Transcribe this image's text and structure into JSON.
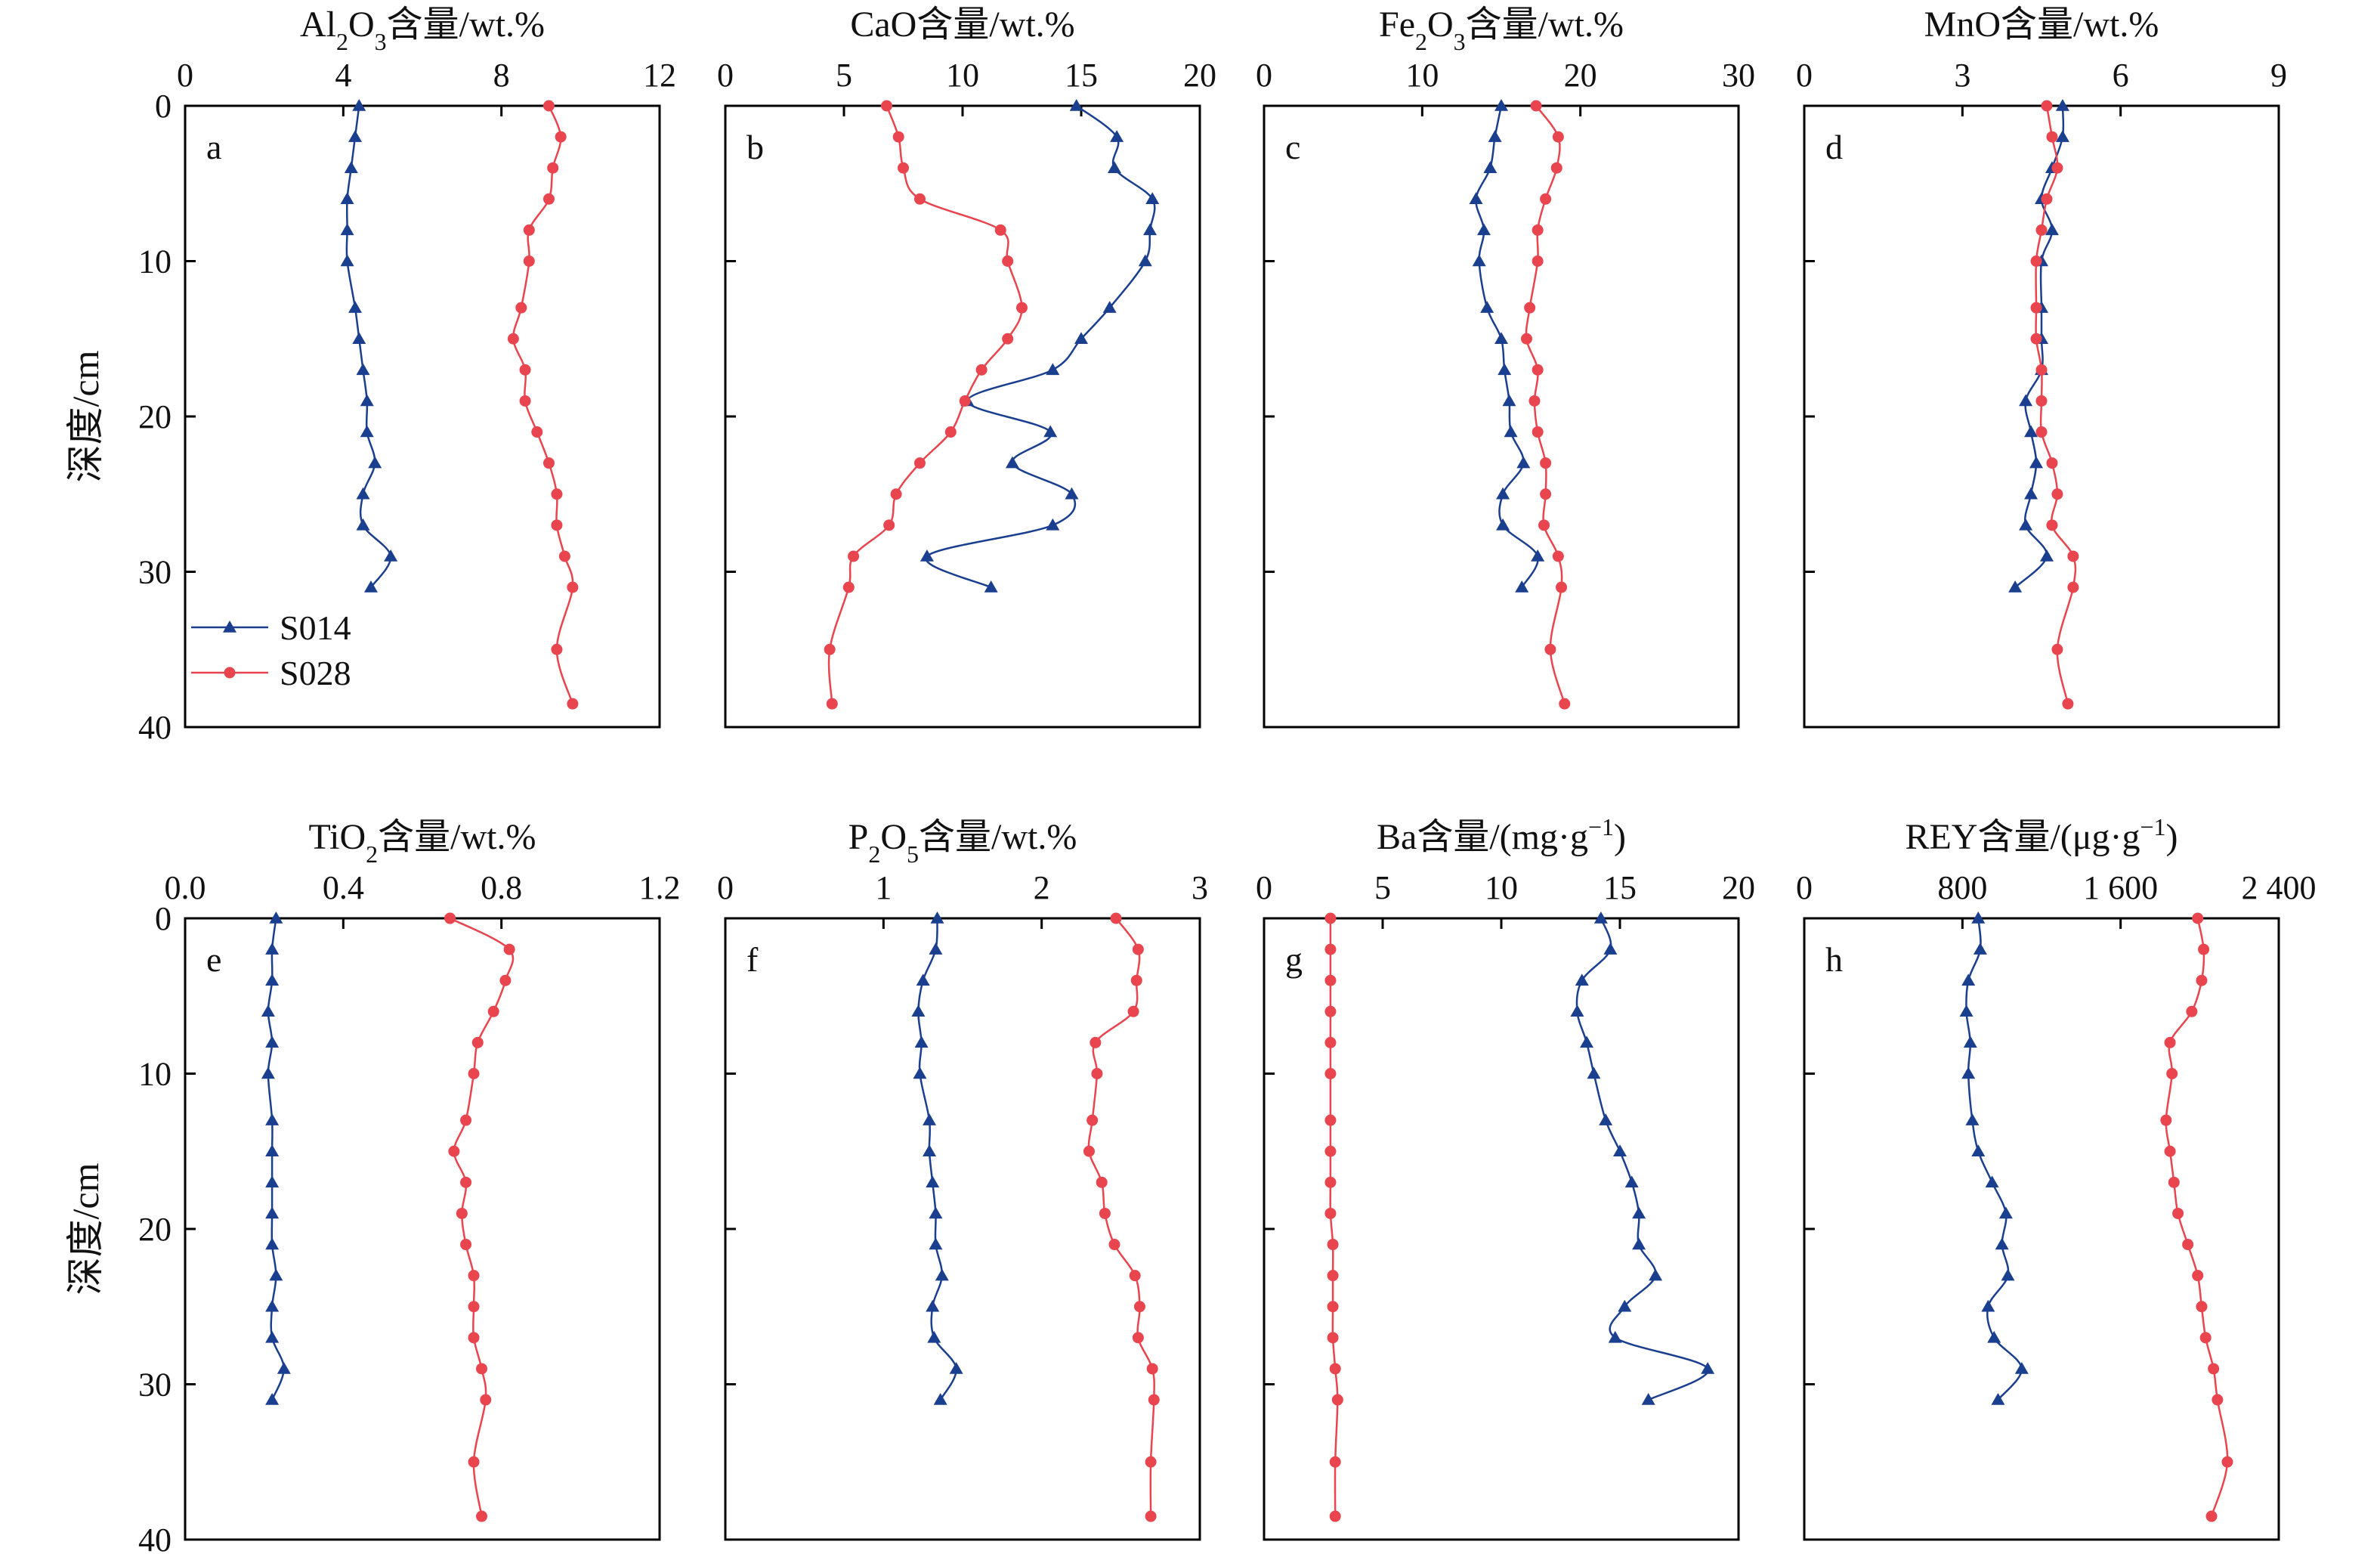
{
  "colors": {
    "S014": "#1b3f8f",
    "S028": "#e8454f"
  },
  "legend": {
    "items": [
      {
        "name": "S014",
        "marker": "triangle"
      },
      {
        "name": "S028",
        "marker": "circle"
      }
    ]
  },
  "chart_data": [
    {
      "type": "line",
      "letter": "a",
      "title_parts": [
        {
          "t": "Al"
        },
        {
          "t": "2",
          "sub": true
        },
        {
          "t": "O"
        },
        {
          "t": "3",
          "sub": true
        },
        {
          "t": "含量/wt.%"
        }
      ],
      "xlim": [
        0,
        12
      ],
      "xtick_values": [
        0,
        4,
        8,
        12
      ],
      "xtick_labels": [
        "0",
        "4",
        "8",
        "12"
      ],
      "ylabel": "深度/cm",
      "ylim": [
        0,
        40
      ],
      "ytick_values": [
        0,
        10,
        20,
        30,
        40
      ],
      "ytick_labels": [
        "0",
        "10",
        "20",
        "30",
        "40"
      ],
      "series": [
        {
          "name": "S014",
          "depth": [
            0,
            2,
            4,
            6,
            8,
            10,
            13,
            15,
            17,
            19,
            21,
            23,
            25,
            27,
            29,
            31
          ],
          "values": [
            4.4,
            4.3,
            4.2,
            4.1,
            4.1,
            4.1,
            4.3,
            4.4,
            4.5,
            4.6,
            4.6,
            4.8,
            4.5,
            4.5,
            5.2,
            4.7
          ]
        },
        {
          "name": "S028",
          "depth": [
            0,
            2,
            4,
            6,
            8,
            10,
            13,
            15,
            17,
            19,
            21,
            23,
            25,
            27,
            29,
            31,
            35,
            38.5
          ],
          "values": [
            9.2,
            9.5,
            9.3,
            9.2,
            8.7,
            8.7,
            8.5,
            8.3,
            8.6,
            8.6,
            8.9,
            9.2,
            9.4,
            9.4,
            9.6,
            9.8,
            9.4,
            9.8
          ]
        }
      ]
    },
    {
      "type": "line",
      "letter": "b",
      "title_parts": [
        {
          "t": "CaO含量/wt.%"
        }
      ],
      "xlim": [
        0,
        20
      ],
      "xtick_values": [
        0,
        5,
        10,
        15,
        20
      ],
      "xtick_labels": [
        "0",
        "5",
        "10",
        "15",
        "20"
      ],
      "ylabel": "深度/cm",
      "ylim": [
        0,
        40
      ],
      "ytick_values": [
        0,
        10,
        20,
        30,
        40
      ],
      "ytick_labels": [
        "0",
        "10",
        "20",
        "30",
        "40"
      ],
      "series": [
        {
          "name": "S014",
          "depth": [
            0,
            2,
            4,
            6,
            8,
            10,
            13,
            15,
            17,
            19,
            21,
            23,
            25,
            27,
            29,
            31
          ],
          "values": [
            14.8,
            16.5,
            16.4,
            18.0,
            17.9,
            17.7,
            16.2,
            15.0,
            13.8,
            10.2,
            13.7,
            12.1,
            14.6,
            13.8,
            8.5,
            11.2
          ]
        },
        {
          "name": "S028",
          "depth": [
            0,
            2,
            4,
            6,
            8,
            10,
            13,
            15,
            17,
            19,
            21,
            23,
            25,
            27,
            29,
            31,
            35,
            38.5
          ],
          "values": [
            6.8,
            7.3,
            7.5,
            8.2,
            11.6,
            11.9,
            12.5,
            11.9,
            10.8,
            10.1,
            9.5,
            8.2,
            7.2,
            6.9,
            5.4,
            5.2,
            4.4,
            4.5
          ]
        }
      ]
    },
    {
      "type": "line",
      "letter": "c",
      "title_parts": [
        {
          "t": "Fe"
        },
        {
          "t": "2",
          "sub": true
        },
        {
          "t": "O"
        },
        {
          "t": "3",
          "sub": true
        },
        {
          "t": "含量/wt.%"
        }
      ],
      "xlim": [
        0,
        30
      ],
      "xtick_values": [
        0,
        10,
        20,
        30
      ],
      "xtick_labels": [
        "0",
        "10",
        "20",
        "30"
      ],
      "ylabel": "深度/cm",
      "ylim": [
        0,
        40
      ],
      "ytick_values": [
        0,
        10,
        20,
        30,
        40
      ],
      "ytick_labels": [
        "0",
        "10",
        "20",
        "30",
        "40"
      ],
      "series": [
        {
          "name": "S014",
          "depth": [
            0,
            2,
            4,
            6,
            8,
            10,
            13,
            15,
            17,
            19,
            21,
            23,
            25,
            27,
            29,
            31
          ],
          "values": [
            15.0,
            14.6,
            14.3,
            13.4,
            13.9,
            13.6,
            14.1,
            15.0,
            15.2,
            15.5,
            15.6,
            16.4,
            15.1,
            15.1,
            17.3,
            16.3
          ]
        },
        {
          "name": "S028",
          "depth": [
            0,
            2,
            4,
            6,
            8,
            10,
            13,
            15,
            17,
            19,
            21,
            23,
            25,
            27,
            29,
            31,
            35,
            38.5
          ],
          "values": [
            17.2,
            18.6,
            18.5,
            17.8,
            17.3,
            17.3,
            16.8,
            16.6,
            17.3,
            17.1,
            17.3,
            17.8,
            17.8,
            17.7,
            18.6,
            18.8,
            18.1,
            19.0
          ]
        }
      ]
    },
    {
      "type": "line",
      "letter": "d",
      "title_parts": [
        {
          "t": "MnO含量/wt.%"
        }
      ],
      "xlim": [
        0,
        9
      ],
      "xtick_values": [
        0,
        3,
        6,
        9
      ],
      "xtick_labels": [
        "0",
        "3",
        "6",
        "9"
      ],
      "ylabel": "深度/cm",
      "ylim": [
        0,
        40
      ],
      "ytick_values": [
        0,
        10,
        20,
        30,
        40
      ],
      "ytick_labels": [
        "0",
        "10",
        "20",
        "30",
        "40"
      ],
      "series": [
        {
          "name": "S014",
          "depth": [
            0,
            2,
            4,
            6,
            8,
            10,
            13,
            15,
            17,
            19,
            21,
            23,
            25,
            27,
            29,
            31
          ],
          "values": [
            4.9,
            4.9,
            4.7,
            4.5,
            4.7,
            4.5,
            4.5,
            4.5,
            4.5,
            4.2,
            4.3,
            4.4,
            4.3,
            4.2,
            4.6,
            4.0
          ]
        },
        {
          "name": "S028",
          "depth": [
            0,
            2,
            4,
            6,
            8,
            10,
            13,
            15,
            17,
            19,
            21,
            23,
            25,
            27,
            29,
            31,
            35,
            38.5
          ],
          "values": [
            4.6,
            4.7,
            4.8,
            4.6,
            4.5,
            4.4,
            4.4,
            4.4,
            4.5,
            4.5,
            4.5,
            4.7,
            4.8,
            4.7,
            5.1,
            5.1,
            4.8,
            5.0
          ]
        }
      ]
    },
    {
      "type": "line",
      "letter": "e",
      "title_parts": [
        {
          "t": "TiO"
        },
        {
          "t": "2",
          "sub": true
        },
        {
          "t": "含量/wt.%"
        }
      ],
      "xlim": [
        0,
        1.2
      ],
      "xtick_values": [
        0,
        0.4,
        0.8,
        1.2
      ],
      "xtick_labels": [
        "0.0",
        "0.4",
        "0.8",
        "1.2"
      ],
      "ylabel": "深度/cm",
      "ylim": [
        0,
        40
      ],
      "ytick_values": [
        0,
        10,
        20,
        30,
        40
      ],
      "ytick_labels": [
        "0",
        "10",
        "20",
        "30",
        "40"
      ],
      "series": [
        {
          "name": "S014",
          "depth": [
            0,
            2,
            4,
            6,
            8,
            10,
            13,
            15,
            17,
            19,
            21,
            23,
            25,
            27,
            29,
            31
          ],
          "values": [
            0.23,
            0.22,
            0.22,
            0.21,
            0.22,
            0.21,
            0.22,
            0.22,
            0.22,
            0.22,
            0.22,
            0.23,
            0.22,
            0.22,
            0.25,
            0.22
          ]
        },
        {
          "name": "S028",
          "depth": [
            0,
            0,
            2,
            4,
            6,
            8,
            10,
            13,
            15,
            17,
            19,
            21,
            23,
            25,
            27,
            29,
            31,
            35,
            38.5
          ],
          "values": [
            0.67,
            0.67,
            0.82,
            0.81,
            0.78,
            0.74,
            0.73,
            0.71,
            0.68,
            0.71,
            0.7,
            0.71,
            0.73,
            0.73,
            0.73,
            0.75,
            0.76,
            0.73,
            0.75
          ]
        }
      ]
    },
    {
      "type": "line",
      "letter": "f",
      "title_parts": [
        {
          "t": "P"
        },
        {
          "t": "2",
          "sub": true
        },
        {
          "t": "O"
        },
        {
          "t": "5",
          "sub": true
        },
        {
          "t": "含量/wt.%"
        }
      ],
      "xlim": [
        0,
        3
      ],
      "xtick_values": [
        0,
        1,
        2,
        3
      ],
      "xtick_labels": [
        "0",
        "1",
        "2",
        "3"
      ],
      "ylabel": "深度/cm",
      "ylim": [
        0,
        40
      ],
      "ytick_values": [
        0,
        10,
        20,
        30,
        40
      ],
      "ytick_labels": [
        "0",
        "10",
        "20",
        "30",
        "40"
      ],
      "series": [
        {
          "name": "S014",
          "depth": [
            0,
            2,
            4,
            6,
            8,
            10,
            13,
            15,
            17,
            19,
            21,
            23,
            25,
            27,
            29,
            31
          ],
          "values": [
            1.34,
            1.33,
            1.25,
            1.22,
            1.24,
            1.23,
            1.29,
            1.29,
            1.31,
            1.33,
            1.33,
            1.37,
            1.31,
            1.32,
            1.46,
            1.36
          ]
        },
        {
          "name": "S028",
          "depth": [
            0,
            2,
            4,
            6,
            8,
            10,
            13,
            15,
            17,
            19,
            21,
            23,
            25,
            27,
            29,
            31,
            35,
            38.5
          ],
          "values": [
            2.47,
            2.61,
            2.6,
            2.58,
            2.34,
            2.35,
            2.32,
            2.3,
            2.38,
            2.4,
            2.46,
            2.59,
            2.62,
            2.61,
            2.7,
            2.71,
            2.69,
            2.69
          ]
        }
      ]
    },
    {
      "type": "line",
      "letter": "g",
      "title_parts": [
        {
          "t": "Ba含量/(mg·g"
        },
        {
          "t": "−1",
          "sup": true
        },
        {
          "t": ")"
        }
      ],
      "xlim": [
        0,
        20
      ],
      "xtick_values": [
        0,
        5,
        10,
        15,
        20
      ],
      "xtick_labels": [
        "0",
        "5",
        "10",
        "15",
        "20"
      ],
      "ylabel": "深度/cm",
      "ylim": [
        0,
        40
      ],
      "ytick_values": [
        0,
        10,
        20,
        30,
        40
      ],
      "ytick_labels": [
        "0",
        "10",
        "20",
        "30",
        "40"
      ],
      "series": [
        {
          "name": "S014",
          "depth": [
            0,
            2,
            4,
            6,
            8,
            10,
            13,
            15,
            17,
            19,
            21,
            23,
            25,
            27,
            29,
            31
          ],
          "values": [
            14.2,
            14.6,
            13.4,
            13.2,
            13.6,
            13.9,
            14.4,
            15.0,
            15.5,
            15.8,
            15.8,
            16.5,
            15.2,
            14.8,
            18.7,
            16.2
          ]
        },
        {
          "name": "S028",
          "depth": [
            0,
            2,
            4,
            6,
            8,
            10,
            13,
            15,
            17,
            19,
            21,
            23,
            25,
            27,
            29,
            31,
            35,
            38.5
          ],
          "values": [
            2.8,
            2.8,
            2.8,
            2.8,
            2.8,
            2.8,
            2.8,
            2.8,
            2.8,
            2.8,
            2.9,
            2.9,
            2.9,
            2.9,
            3.0,
            3.1,
            3.0,
            3.0
          ]
        }
      ]
    },
    {
      "type": "line",
      "letter": "h",
      "title_parts": [
        {
          "t": "REY含量/(μg·g"
        },
        {
          "t": "−1",
          "sup": true
        },
        {
          "t": ")"
        }
      ],
      "xlim": [
        0,
        2400
      ],
      "xtick_values": [
        0,
        800,
        1600,
        2400
      ],
      "xtick_labels": [
        "0",
        "800",
        "1 600",
        "2 400"
      ],
      "ylabel": "深度/cm",
      "ylim": [
        0,
        40
      ],
      "ytick_values": [
        0,
        10,
        20,
        30,
        40
      ],
      "ytick_labels": [
        "0",
        "10",
        "20",
        "30",
        "40"
      ],
      "series": [
        {
          "name": "S014",
          "depth": [
            0,
            2,
            4,
            6,
            8,
            10,
            13,
            15,
            17,
            19,
            21,
            23,
            25,
            27,
            29,
            31
          ],
          "values": [
            880,
            890,
            830,
            820,
            840,
            830,
            850,
            880,
            950,
            1020,
            1000,
            1030,
            930,
            960,
            1100,
            980
          ]
        },
        {
          "name": "S028",
          "depth": [
            0,
            2,
            4,
            6,
            8,
            10,
            13,
            15,
            17,
            19,
            21,
            23,
            25,
            27,
            29,
            31,
            35,
            38.5
          ],
          "values": [
            1990,
            2020,
            2010,
            1960,
            1850,
            1860,
            1830,
            1850,
            1870,
            1890,
            1940,
            1990,
            2010,
            2030,
            2070,
            2090,
            2140,
            2060
          ]
        }
      ]
    }
  ]
}
